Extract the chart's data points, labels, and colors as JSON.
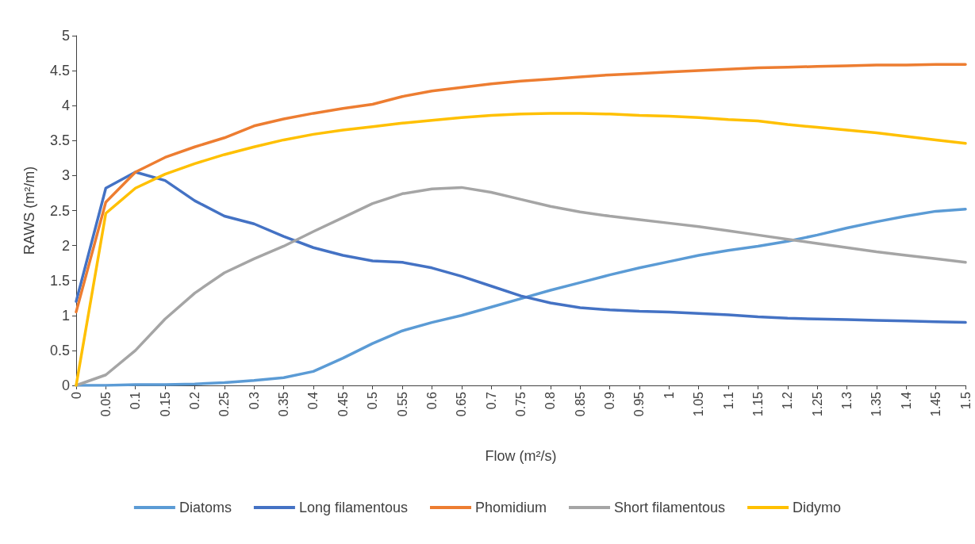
{
  "chart_data": {
    "type": "line",
    "xlabel": "Flow (m²/s)",
    "ylabel": "RAWS (m²/m)",
    "categories": [
      "0",
      "0.05",
      "0.1",
      "0.15",
      "0.2",
      "0.25",
      "0.3",
      "0.35",
      "0.4",
      "0.45",
      "0.5",
      "0.55",
      "0.6",
      "0.65",
      "0.7",
      "0.75",
      "0.8",
      "0.85",
      "0.9",
      "0.95",
      "1",
      "1.05",
      "1.1",
      "1.15",
      "1.2",
      "1.25",
      "1.3",
      "1.35",
      "1.4",
      "1.45",
      "1.5"
    ],
    "series": [
      {
        "name": "Diatoms",
        "color": "#5b9bd5",
        "values": [
          0,
          0,
          0.01,
          0.01,
          0.02,
          0.04,
          0.07,
          0.11,
          0.2,
          0.39,
          0.6,
          0.78,
          0.9,
          1.0,
          1.12,
          1.24,
          1.36,
          1.47,
          1.58,
          1.68,
          1.77,
          1.86,
          1.93,
          1.99,
          2.06,
          2.15,
          2.25,
          2.34,
          2.42,
          2.49,
          2.52
        ]
      },
      {
        "name": "Long filamentous",
        "color": "#4472c4",
        "values": [
          1.2,
          2.82,
          3.05,
          2.93,
          2.64,
          2.42,
          2.31,
          2.13,
          1.97,
          1.86,
          1.78,
          1.76,
          1.68,
          1.56,
          1.42,
          1.28,
          1.18,
          1.11,
          1.08,
          1.06,
          1.05,
          1.03,
          1.01,
          0.98,
          0.96,
          0.95,
          0.94,
          0.93,
          0.92,
          0.91,
          0.9
        ]
      },
      {
        "name": "Phomidium",
        "color": "#ed7d31",
        "values": [
          1.05,
          2.62,
          3.05,
          3.26,
          3.41,
          3.54,
          3.71,
          3.81,
          3.89,
          3.96,
          4.02,
          4.13,
          4.21,
          4.26,
          4.31,
          4.35,
          4.38,
          4.41,
          4.44,
          4.46,
          4.48,
          4.5,
          4.52,
          4.54,
          4.55,
          4.56,
          4.57,
          4.58,
          4.58,
          4.59,
          4.59
        ]
      },
      {
        "name": "Short filamentous",
        "color": "#a5a5a5",
        "values": [
          0,
          0.15,
          0.5,
          0.95,
          1.32,
          1.61,
          1.81,
          1.99,
          2.2,
          2.4,
          2.6,
          2.74,
          2.81,
          2.83,
          2.76,
          2.66,
          2.56,
          2.48,
          2.42,
          2.37,
          2.32,
          2.27,
          2.21,
          2.15,
          2.09,
          2.03,
          1.97,
          1.91,
          1.86,
          1.81,
          1.76
        ]
      },
      {
        "name": "Didymo",
        "color": "#ffc000",
        "values": [
          0,
          2.46,
          2.82,
          3.02,
          3.17,
          3.3,
          3.41,
          3.51,
          3.59,
          3.65,
          3.7,
          3.75,
          3.79,
          3.83,
          3.86,
          3.88,
          3.89,
          3.89,
          3.88,
          3.86,
          3.85,
          3.83,
          3.8,
          3.78,
          3.73,
          3.69,
          3.65,
          3.61,
          3.56,
          3.51,
          3.46
        ]
      }
    ],
    "ylim": [
      0,
      5
    ],
    "yticks": [
      0,
      0.5,
      1,
      1.5,
      2,
      2.5,
      3,
      3.5,
      4,
      4.5,
      5
    ],
    "grid": false,
    "legend": "bottom",
    "marker": "none",
    "line_style": "solid"
  }
}
